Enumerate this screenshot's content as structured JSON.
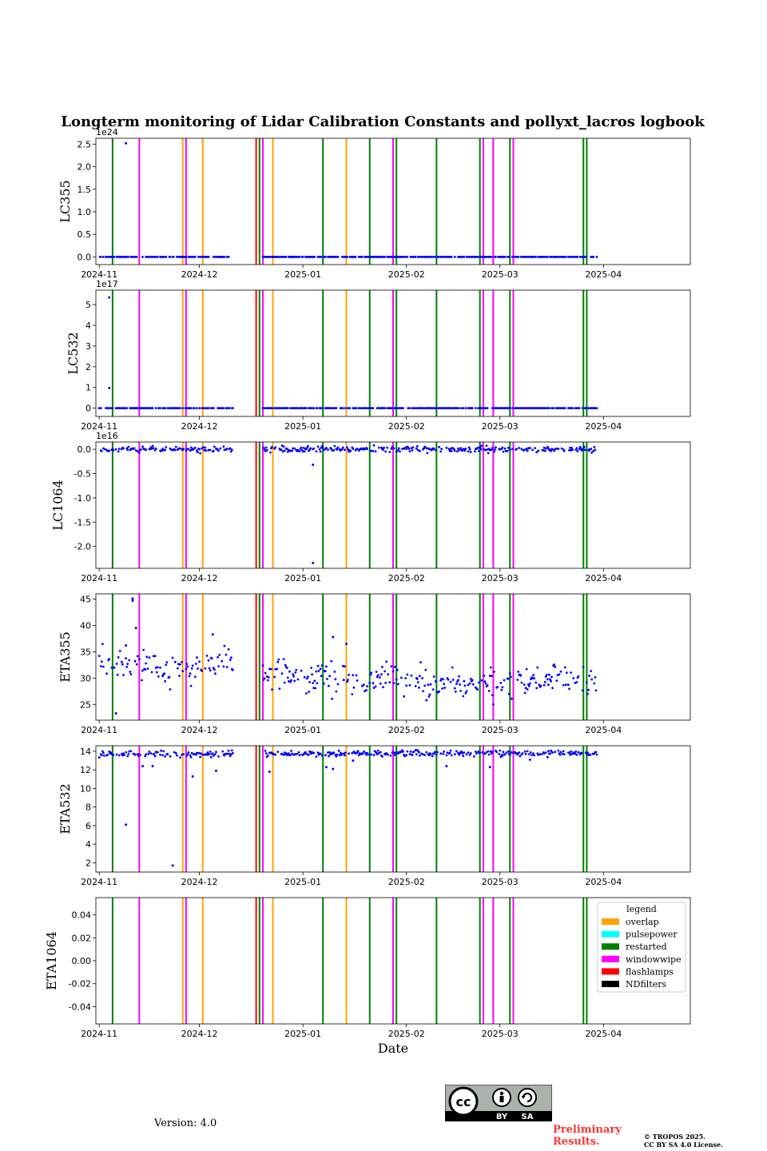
{
  "footer": {
    "version": "Version: 4.0",
    "preliminary_line1": "Preliminary",
    "preliminary_line2": "Results.",
    "copyright_line1": "© TROPOS 2025.",
    "copyright_line2": "CC BY SA 4.0 License.",
    "cc_badge": {
      "by": "BY",
      "sa": "SA"
    }
  },
  "chart_data": {
    "type": "scatter",
    "title": "Longterm monitoring of Lidar Calibration Constants and pollyxt_lacros logbook",
    "xlabel": "Date",
    "x_range": [
      "2024-10-31",
      "2025-04-27"
    ],
    "x_ticks": [
      "2024-11",
      "2024-12",
      "2025-01",
      "2025-02",
      "2025-03",
      "2025-04"
    ],
    "x_tick_dates": [
      "2024-11-01",
      "2024-12-01",
      "2025-01-01",
      "2025-02-01",
      "2025-03-01",
      "2025-04-01"
    ],
    "colors": {
      "points": "#0000ff",
      "overlap": "#ffa500",
      "pulsepower": "#00ffff",
      "restarted": "#008000",
      "windowwipe": "#ff00ff",
      "flashlamps": "#ff0000",
      "NDfilters": "#000000"
    },
    "logbook_events": [
      {
        "type": "restarted",
        "date": "2024-11-05"
      },
      {
        "type": "windowwipe",
        "date": "2024-11-13"
      },
      {
        "type": "overlap",
        "date": "2024-11-26"
      },
      {
        "type": "windowwipe",
        "date": "2024-11-27"
      },
      {
        "type": "overlap",
        "date": "2024-12-02"
      },
      {
        "type": "flashlamps",
        "date": "2024-12-18"
      },
      {
        "type": "restarted",
        "date": "2024-12-19"
      },
      {
        "type": "windowwipe",
        "date": "2024-12-20"
      },
      {
        "type": "overlap",
        "date": "2024-12-23"
      },
      {
        "type": "restarted",
        "date": "2025-01-07"
      },
      {
        "type": "overlap",
        "date": "2025-01-14"
      },
      {
        "type": "restarted",
        "date": "2025-01-21"
      },
      {
        "type": "windowwipe",
        "date": "2025-01-28"
      },
      {
        "type": "restarted",
        "date": "2025-01-29"
      },
      {
        "type": "restarted",
        "date": "2025-02-10"
      },
      {
        "type": "restarted",
        "date": "2025-02-23"
      },
      {
        "type": "windowwipe",
        "date": "2025-02-24"
      },
      {
        "type": "windowwipe",
        "date": "2025-02-27"
      },
      {
        "type": "restarted",
        "date": "2025-03-04"
      },
      {
        "type": "windowwipe",
        "date": "2025-03-05"
      },
      {
        "type": "restarted",
        "date": "2025-03-26"
      },
      {
        "type": "restarted",
        "date": "2025-03-27"
      }
    ],
    "legend": {
      "title": "legend",
      "position": "upper right of ETA1064 panel",
      "entries": [
        "overlap",
        "pulsepower",
        "restarted",
        "windowwipe",
        "flashlamps",
        "NDfilters"
      ]
    },
    "data_coverage": [
      [
        "2024-11-01",
        "2024-12-11"
      ],
      [
        "2024-12-20",
        "2025-03-30"
      ]
    ],
    "panels": [
      {
        "ylabel": "LC355",
        "offset_text": "1e24",
        "ylim": [
          -1.7e+23,
          2.63e+24
        ],
        "yticks": [
          "0.0",
          "0.5",
          "1.0",
          "1.5",
          "2.0",
          "2.5"
        ],
        "ytick_values": [
          0,
          5e+23,
          1e+24,
          1.5e+24,
          2e+24,
          2.5e+24
        ],
        "baseline": 0,
        "baseline_jitter": 0,
        "outliers": [
          {
            "date": "2024-11-09",
            "value": 2.52e+24
          }
        ]
      },
      {
        "ylabel": "LC532",
        "offset_text": "1e17",
        "ylim": [
          -4e+16,
          5.7e+17
        ],
        "yticks": [
          "0",
          "1",
          "2",
          "3",
          "4",
          "5"
        ],
        "ytick_values": [
          0,
          1e+17,
          2e+17,
          3e+17,
          4e+17,
          5e+17
        ],
        "baseline": 0,
        "baseline_jitter": 0,
        "outliers": [
          {
            "date": "2024-11-04",
            "value": 5.35e+17
          },
          {
            "date": "2024-11-04",
            "value": 9.7e+16
          }
        ]
      },
      {
        "ylabel": "LC1064",
        "offset_text": "1e16",
        "ylim": [
          -2.45e+16,
          1500000000000000.0
        ],
        "yticks": [
          "0.0",
          "-0.5",
          "-1.0",
          "-1.5",
          "-2.0"
        ],
        "ytick_values": [
          0,
          -5000000000000000.0,
          -1e+16,
          -1.5e+16,
          -2e+16
        ],
        "baseline": 0,
        "baseline_jitter": 300000000000000.0,
        "outliers": [
          {
            "date": "2025-01-04",
            "value": -3200000000000000.0
          },
          {
            "date": "2025-01-04",
            "value": -2.34e+16
          }
        ]
      },
      {
        "ylabel": "ETA355",
        "offset_text": "",
        "ylim": [
          22,
          46
        ],
        "yticks": [
          "25",
          "30",
          "35",
          "40",
          "45"
        ],
        "ytick_values": [
          25,
          30,
          35,
          40,
          45
        ],
        "trend": [
          {
            "date": "2024-11-01",
            "value": 33.5
          },
          {
            "date": "2024-11-20",
            "value": 31.5
          },
          {
            "date": "2024-12-11",
            "value": 33
          },
          {
            "date": "2024-12-20",
            "value": 31
          },
          {
            "date": "2025-01-10",
            "value": 30
          },
          {
            "date": "2025-01-25",
            "value": 30
          },
          {
            "date": "2025-02-10",
            "value": 29
          },
          {
            "date": "2025-03-01",
            "value": 28.5
          },
          {
            "date": "2025-03-15",
            "value": 30
          },
          {
            "date": "2025-03-30",
            "value": 29
          }
        ],
        "scatter": 1.4,
        "outliers": [
          {
            "date": "2024-11-06",
            "value": 23.3
          },
          {
            "date": "2024-11-09",
            "value": 36.2
          },
          {
            "date": "2024-11-11",
            "value": 44.7
          },
          {
            "date": "2024-11-11",
            "value": 45.1
          },
          {
            "date": "2024-11-12",
            "value": 39.5
          },
          {
            "date": "2024-12-05",
            "value": 38.3
          },
          {
            "date": "2025-01-10",
            "value": 37.8
          },
          {
            "date": "2025-01-14",
            "value": 36.5
          },
          {
            "date": "2025-02-07",
            "value": 25.8
          }
        ]
      },
      {
        "ylabel": "ETA532",
        "offset_text": "",
        "ylim": [
          1.0,
          14.6
        ],
        "yticks": [
          "2",
          "4",
          "6",
          "8",
          "10",
          "12",
          "14"
        ],
        "ytick_values": [
          2,
          4,
          6,
          8,
          10,
          12,
          14
        ],
        "trend": [
          {
            "date": "2024-11-01",
            "value": 13.7
          },
          {
            "date": "2025-03-30",
            "value": 13.8
          }
        ],
        "scatter": 0.15,
        "outliers": [
          {
            "date": "2024-11-09",
            "value": 6.1
          },
          {
            "date": "2024-11-23",
            "value": 1.7
          },
          {
            "date": "2024-11-29",
            "value": 11.3
          },
          {
            "date": "2024-11-14",
            "value": 12.4
          },
          {
            "date": "2024-11-17",
            "value": 12.4
          },
          {
            "date": "2024-12-06",
            "value": 11.9
          },
          {
            "date": "2024-12-22",
            "value": 11.8
          },
          {
            "date": "2025-01-08",
            "value": 12.3
          },
          {
            "date": "2025-01-10",
            "value": 12.1
          },
          {
            "date": "2025-02-13",
            "value": 12.4
          },
          {
            "date": "2025-02-26",
            "value": 12.3
          },
          {
            "date": "2025-01-16",
            "value": 13.0
          },
          {
            "date": "2025-03-10",
            "value": 13.1
          }
        ]
      },
      {
        "ylabel": "ETA1064",
        "offset_text": "",
        "ylim": [
          -0.055,
          0.055
        ],
        "yticks": [
          "0.04",
          "0.02",
          "0.00",
          "-0.02",
          "-0.04"
        ],
        "ytick_values": [
          0.04,
          0.02,
          0.0,
          -0.02,
          -0.04
        ],
        "empty": true
      }
    ]
  }
}
